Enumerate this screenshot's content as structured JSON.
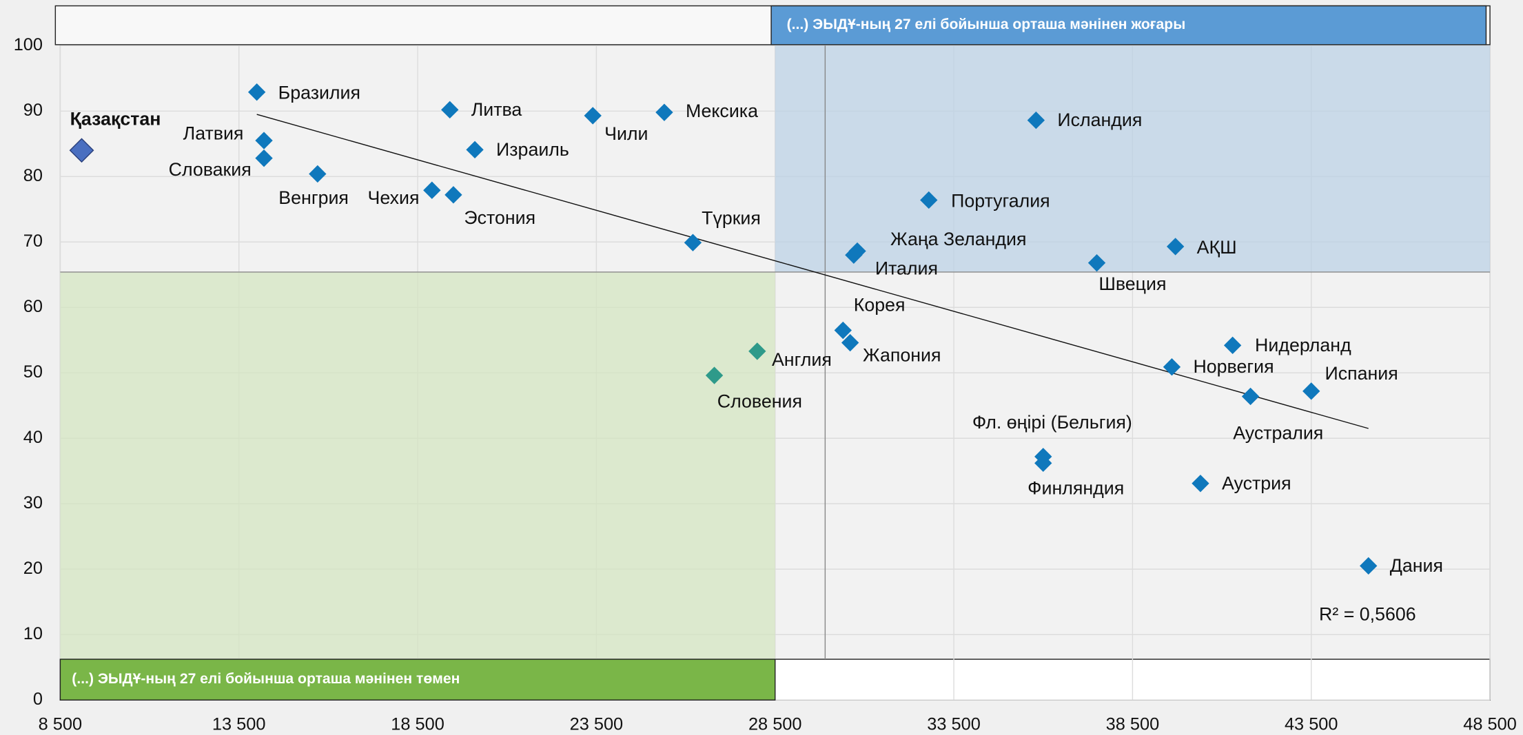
{
  "chart_data": {
    "type": "scatter",
    "xlim": [
      8500,
      48500
    ],
    "xticks": [
      {
        "value": 8500,
        "label": "8 500"
      },
      {
        "value": 13500,
        "label": "13 500"
      },
      {
        "value": 18500,
        "label": "18 500"
      },
      {
        "value": 23500,
        "label": "23 500"
      },
      {
        "value": 28500,
        "label": "28 500"
      },
      {
        "value": 33500,
        "label": "33 500"
      },
      {
        "value": 38500,
        "label": "38 500"
      },
      {
        "value": 43500,
        "label": "43 500"
      },
      {
        "value": 48500,
        "label": "48 500"
      }
    ],
    "ylim": [
      0,
      100
    ],
    "yticks": [
      0,
      10,
      20,
      30,
      40,
      50,
      60,
      70,
      80,
      90,
      100
    ],
    "grid": true,
    "regions": [
      {
        "label": "(...) ЭЫДҰ-ның 27 елі бойынша орташа мәнінен жоғары",
        "x": [
          28500,
          48500
        ],
        "y": [
          65.4,
          100
        ],
        "color": "#b9d0e6",
        "banner_color": "#5b9bd5"
      },
      {
        "label": "(...) ЭЫДҰ-ның 27 елі бойынша орташа мәнінен төмен",
        "x": [
          8500,
          28500
        ],
        "y": [
          0,
          65.4
        ],
        "color": "#d3e5bf",
        "banner_color": "#7ab648"
      }
    ],
    "reference_x": 29900,
    "reference_y": 65.4,
    "trendline": {
      "x": [
        14000,
        45100
      ],
      "y": [
        89.5,
        41.5
      ]
    },
    "r2_label": "R² = 0,5606",
    "points": [
      {
        "name": "Қазақстан",
        "x": 9100,
        "y": 84.0,
        "color": "#4a6fc0"
      },
      {
        "name": "Бразилия",
        "x": 14000,
        "y": 92.9,
        "color": "#0f78bc"
      },
      {
        "name": "Латвия",
        "x": 14200,
        "y": 85.5,
        "color": "#0f78bc"
      },
      {
        "name": "Словакия",
        "x": 14200,
        "y": 82.8,
        "color": "#0f78bc"
      },
      {
        "name": "Венгрия",
        "x": 15700,
        "y": 80.4,
        "color": "#0f78bc"
      },
      {
        "name": "Чехия",
        "x": 18900,
        "y": 77.9,
        "color": "#0f78bc"
      },
      {
        "name": "Эстония",
        "x": 19500,
        "y": 77.2,
        "color": "#0f78bc"
      },
      {
        "name": "Литва",
        "x": 19400,
        "y": 90.2,
        "color": "#0f78bc"
      },
      {
        "name": "Израиль",
        "x": 20100,
        "y": 84.1,
        "color": "#0f78bc"
      },
      {
        "name": "Чили",
        "x": 23400,
        "y": 89.3,
        "color": "#0f78bc"
      },
      {
        "name": "Мексика",
        "x": 25400,
        "y": 89.8,
        "color": "#0f78bc"
      },
      {
        "name": "Түркия",
        "x": 26200,
        "y": 69.9,
        "color": "#0f78bc"
      },
      {
        "name": "Англия",
        "x": 28000,
        "y": 53.3,
        "color": "#2e9a8a"
      },
      {
        "name": "Словения",
        "x": 26800,
        "y": 49.6,
        "color": "#2e9a8a"
      },
      {
        "name": "Корея",
        "x": 30400,
        "y": 56.5,
        "color": "#0f78bc"
      },
      {
        "name": "Жапония",
        "x": 30600,
        "y": 54.6,
        "color": "#0f78bc"
      },
      {
        "name": "Жаңа Зеландия",
        "x": 30800,
        "y": 68.6,
        "color": "#0f78bc"
      },
      {
        "name": "Италия",
        "x": 30700,
        "y": 68.0,
        "color": "#0f78bc"
      },
      {
        "name": "Португалия",
        "x": 32800,
        "y": 76.4,
        "color": "#0f78bc"
      },
      {
        "name": "Исландия",
        "x": 35800,
        "y": 88.6,
        "color": "#0f78bc"
      },
      {
        "name": "Швеция",
        "x": 37500,
        "y": 66.8,
        "color": "#0f78bc"
      },
      {
        "name": "АҚШ",
        "x": 39700,
        "y": 69.3,
        "color": "#0f78bc"
      },
      {
        "name": "Нидерланд",
        "x": 41300,
        "y": 54.2,
        "color": "#0f78bc"
      },
      {
        "name": "Норвегия",
        "x": 39600,
        "y": 50.9,
        "color": "#0f78bc"
      },
      {
        "name": "Испания",
        "x": 43500,
        "y": 47.2,
        "color": "#0f78bc"
      },
      {
        "name": "Аустралия",
        "x": 41800,
        "y": 46.4,
        "color": "#0f78bc"
      },
      {
        "name": "Фл. өңірі (Бельгия)",
        "x": 36000,
        "y": 37.2,
        "color": "#0f78bc"
      },
      {
        "name": "Финляндия",
        "x": 36000,
        "y": 36.2,
        "color": "#0f78bc"
      },
      {
        "name": "Аустрия",
        "x": 40400,
        "y": 33.1,
        "color": "#0f78bc"
      },
      {
        "name": "Дания",
        "x": 45100,
        "y": 20.5,
        "color": "#0f78bc"
      }
    ]
  }
}
